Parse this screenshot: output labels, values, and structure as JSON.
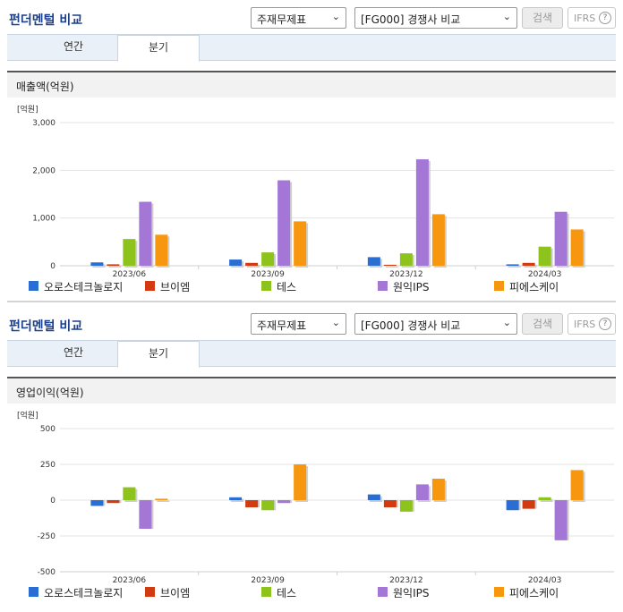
{
  "header": {
    "title": "펀더멘털 비교",
    "select1": "주재무제표",
    "select2": "[FG000] 경쟁사 비교",
    "search_label": "검색",
    "ifrs_label": "IFRS",
    "help_glyph": "?"
  },
  "tabs": [
    "연간",
    "분기"
  ],
  "active_tab": 1,
  "legend": [
    {
      "name": "오로스테크놀로지",
      "color": "#2a6ed3"
    },
    {
      "name": "브이엠",
      "color": "#d23a12"
    },
    {
      "name": "테스",
      "color": "#8ec31d"
    },
    {
      "name": "원익IPS",
      "color": "#a476d6"
    },
    {
      "name": "피에스케이",
      "color": "#f7960f"
    }
  ],
  "chart_data": [
    {
      "type": "bar",
      "title": "매출액(억원)",
      "unit_label": "[억원]",
      "categories": [
        "2023/06",
        "2023/09",
        "2023/12",
        "2024/03"
      ],
      "ylim": [
        0,
        3000
      ],
      "yticks": [
        0,
        1000,
        2000,
        3000
      ],
      "ytick_labels": [
        "0",
        "1,000",
        "2,000",
        "3,000"
      ],
      "grid": true,
      "legend_position": "bottom",
      "series": [
        {
          "name": "오로스테크놀로지",
          "values": [
            70,
            130,
            180,
            30
          ]
        },
        {
          "name": "브이엠",
          "values": [
            30,
            60,
            20,
            60
          ]
        },
        {
          "name": "테스",
          "values": [
            560,
            280,
            260,
            400
          ]
        },
        {
          "name": "원익IPS",
          "values": [
            1340,
            1790,
            2230,
            1130
          ]
        },
        {
          "name": "피에스케이",
          "values": [
            650,
            930,
            1080,
            760
          ]
        }
      ]
    },
    {
      "type": "bar",
      "title": "영업이익(억원)",
      "unit_label": "[억원]",
      "categories": [
        "2023/06",
        "2023/09",
        "2023/12",
        "2024/03"
      ],
      "ylim": [
        -500,
        500
      ],
      "yticks": [
        -500,
        -250,
        0,
        250,
        500
      ],
      "ytick_labels": [
        "-500",
        "-250",
        "0",
        "250",
        "500"
      ],
      "grid": true,
      "legend_position": "bottom",
      "series": [
        {
          "name": "오로스테크놀로지",
          "values": [
            -40,
            20,
            40,
            -70
          ]
        },
        {
          "name": "브이엠",
          "values": [
            -20,
            -50,
            -50,
            -60
          ]
        },
        {
          "name": "테스",
          "values": [
            90,
            -70,
            -80,
            20
          ]
        },
        {
          "name": "원익IPS",
          "values": [
            -200,
            -20,
            110,
            -280
          ]
        },
        {
          "name": "피에스케이",
          "values": [
            10,
            250,
            150,
            210
          ]
        }
      ]
    }
  ]
}
